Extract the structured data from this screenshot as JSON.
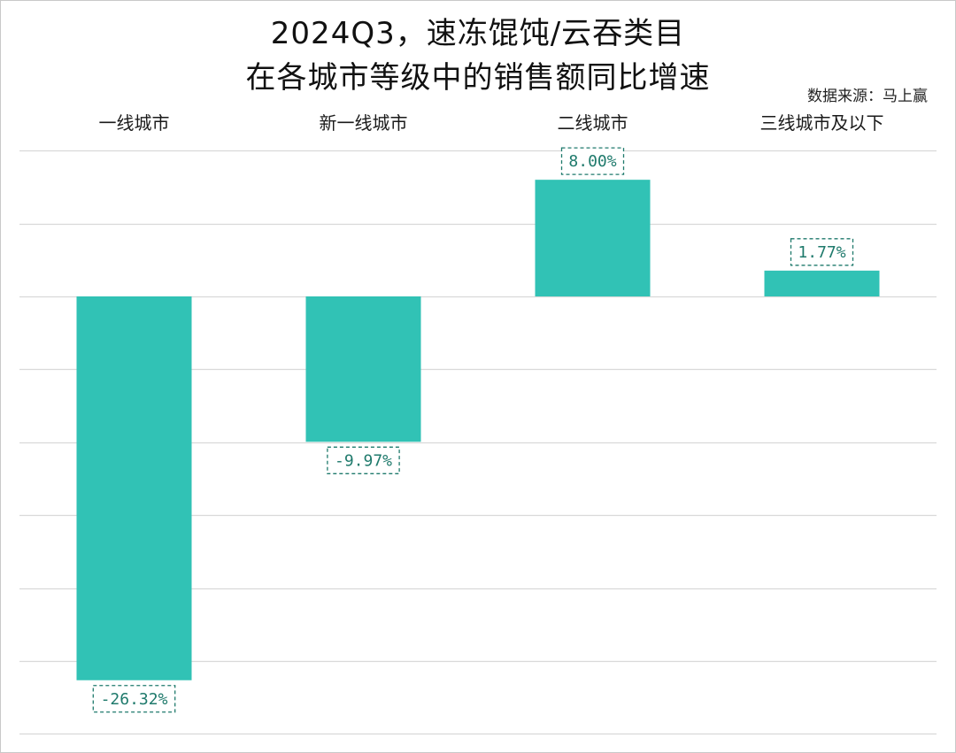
{
  "title_line1": "2024Q3，速冻馄饨/云吞类目",
  "title_line2": "在各城市等级中的销售额同比增速",
  "source": "数据来源：马上赢",
  "colors": {
    "bar": "#31c2b5",
    "grid": "#d9d9d9",
    "label_border": "#1f7a6c"
  },
  "chart_data": {
    "type": "bar",
    "title": "2024Q3，速冻馄饨/云吞类目 在各城市等级中的销售额同比增速",
    "categories": [
      "一线城市",
      "新一线城市",
      "二线城市",
      "三线城市及以下"
    ],
    "values": [
      -26.32,
      -9.97,
      8.0,
      1.77
    ],
    "data_labels": [
      "-26.32%",
      "-9.97%",
      "8.00%",
      "1.77%"
    ],
    "ylim": [
      -30,
      10
    ],
    "grid": true,
    "category_axis_position": "top"
  }
}
